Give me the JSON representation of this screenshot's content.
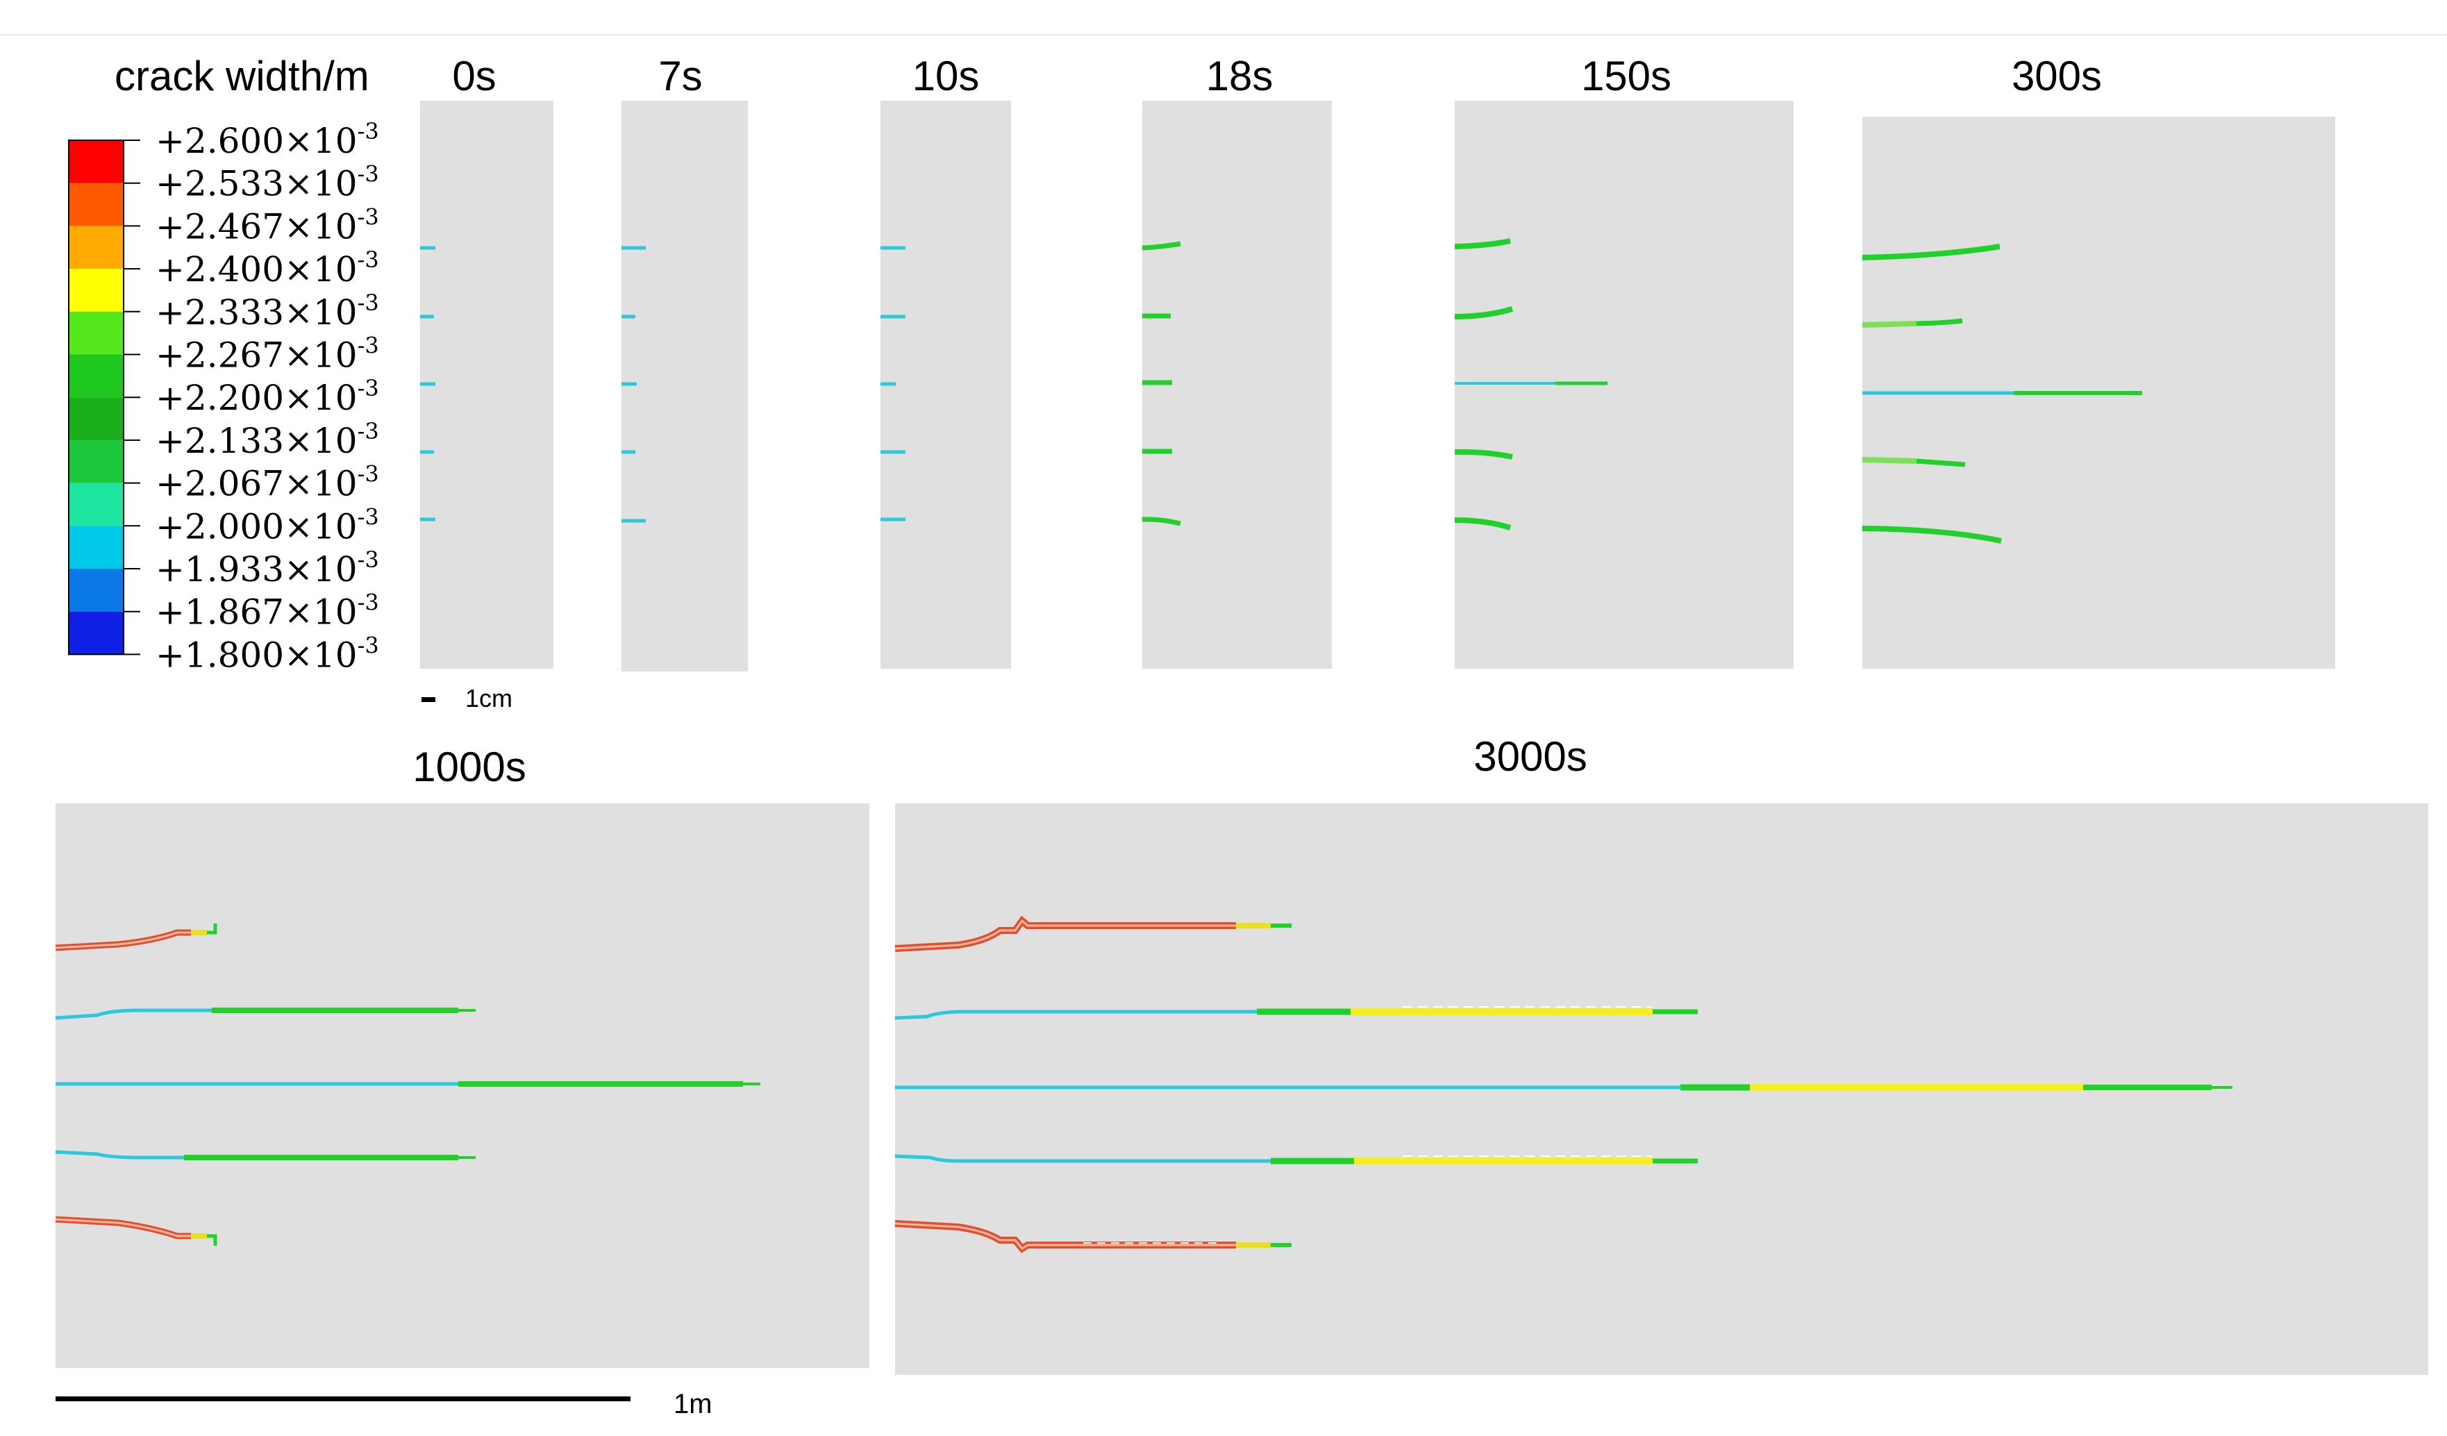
{
  "legend": {
    "title": "crack width/m",
    "exponent": "-3",
    "ticks": [
      "+2.600",
      "+2.533",
      "+2.467",
      "+2.400",
      "+2.333",
      "+2.267",
      "+2.200",
      "+2.133",
      "+2.067",
      "+2.000",
      "+1.933",
      "+1.867",
      "+1.800"
    ],
    "tick_values": [
      2.6,
      2.533,
      2.467,
      2.4,
      2.333,
      2.267,
      2.2,
      2.133,
      2.067,
      2.0,
      1.933,
      1.867,
      1.8
    ],
    "times_sign": "×10",
    "colors": [
      "#ff0000",
      "#ff5a00",
      "#ffaa00",
      "#ffff00",
      "#54e81c",
      "#1ec81e",
      "#1aae1a",
      "#1ec83c",
      "#1ee6a0",
      "#00c8e6",
      "#0a78e6",
      "#1020e6"
    ]
  },
  "panels": [
    {
      "label": "0s"
    },
    {
      "label": "7s"
    },
    {
      "label": "10s"
    },
    {
      "label": "18s"
    },
    {
      "label": "150s"
    },
    {
      "label": "300s"
    },
    {
      "label": "1000s"
    },
    {
      "label": "3000s"
    }
  ],
  "scale_bars": {
    "small": "1cm",
    "large": "1m"
  },
  "colors": {
    "background": "#ffffff",
    "specimen": "#e0e0e0",
    "cyan_crack": "#2ec8dc",
    "green_crack": "#22d02a",
    "yellow_crack": "#f4f020",
    "red_crack": "#f04a30"
  }
}
